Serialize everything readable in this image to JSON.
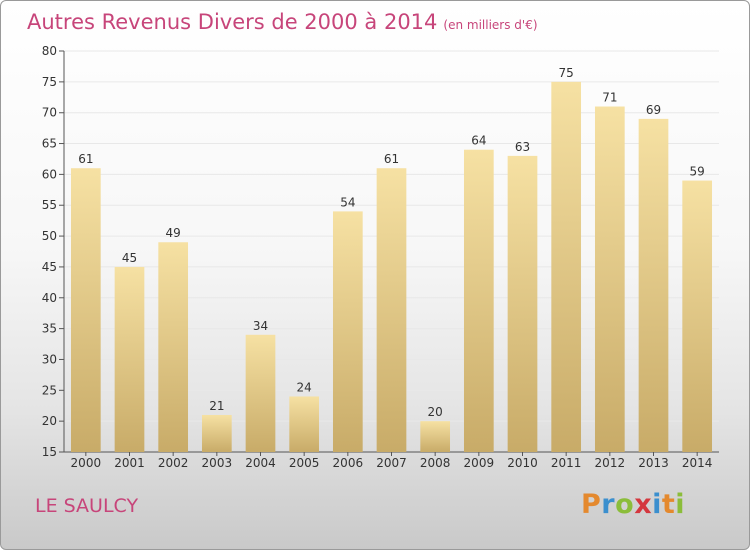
{
  "header": {
    "title": "Autres Revenus Divers de 2000 à 2014",
    "unit": "(en milliers d'€)"
  },
  "footer": {
    "place": "LE SAULCY",
    "logo_letters": [
      "P",
      "r",
      "o",
      "x",
      "i",
      "t",
      "i"
    ],
    "logo_colors": [
      "#e4892e",
      "#3b8fce",
      "#8bbd3a",
      "#d4373e",
      "#3b8fce",
      "#e4892e",
      "#8bbd3a"
    ]
  },
  "colors": {
    "bar_light": "#f6e1a3",
    "bar_dark": "#c8ab68",
    "title": "#c7457a",
    "grid": "#e8e8e8"
  },
  "chart_data": {
    "type": "bar",
    "title": "Autres Revenus Divers de 2000 à 2014",
    "subtitle": "(en milliers d'€)",
    "categories": [
      "2000",
      "2001",
      "2002",
      "2003",
      "2004",
      "2005",
      "2006",
      "2007",
      "2008",
      "2009",
      "2010",
      "2011",
      "2012",
      "2013",
      "2014"
    ],
    "values": [
      61,
      45,
      49,
      21,
      34,
      24,
      54,
      61,
      20,
      64,
      63,
      75,
      71,
      69,
      59
    ],
    "ylim": [
      15,
      80
    ],
    "yticks": [
      15,
      20,
      25,
      30,
      35,
      40,
      45,
      50,
      55,
      60,
      65,
      70,
      75,
      80
    ],
    "grid": true,
    "xlabel": "",
    "ylabel": ""
  }
}
